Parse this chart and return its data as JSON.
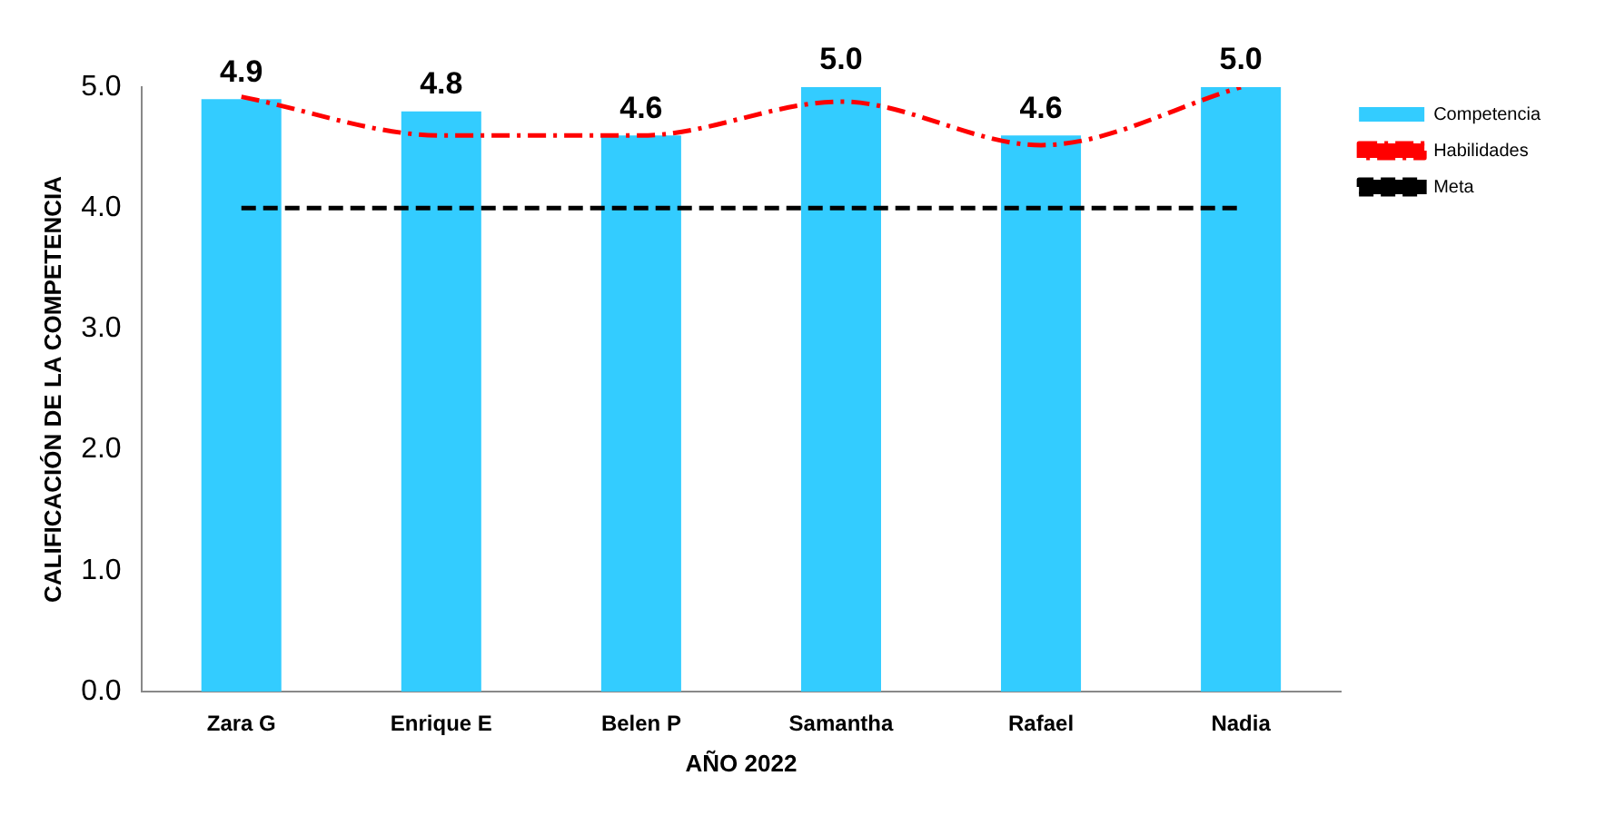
{
  "chart_data": {
    "type": "bar",
    "xlabel": "AÑO 2022",
    "ylabel": "CALIFICACIÓN DE LA COMPETENCIA",
    "categories": [
      "Zara G",
      "Enrique E",
      "Belen P",
      "Samantha",
      "Rafael",
      "Nadia"
    ],
    "series": [
      {
        "name": "Competencia",
        "color": "#33ccff",
        "values": [
          4.9,
          4.8,
          4.6,
          5.0,
          4.6,
          5.0
        ],
        "value_labels": [
          "4.9",
          "4.8",
          "4.6",
          "5.0",
          "4.6",
          "5.0"
        ]
      },
      {
        "name": "Habilidades",
        "type": "line",
        "color": "#ff0000",
        "line_style": "dashed",
        "values": [
          4.92,
          4.6,
          4.6,
          4.88,
          4.52,
          5.0
        ]
      },
      {
        "name": "Meta",
        "type": "line",
        "color": "#000000",
        "line_style": "dashed",
        "values": [
          4.0,
          4.0,
          4.0,
          4.0,
          4.0,
          4.0
        ]
      }
    ],
    "ylim": [
      0,
      5
    ],
    "yticks": [
      {
        "value": 0,
        "label": "0.0"
      },
      {
        "value": 1,
        "label": "1.0"
      },
      {
        "value": 2,
        "label": "2.0"
      },
      {
        "value": 3,
        "label": "3.0"
      },
      {
        "value": 4,
        "label": "4.0"
      },
      {
        "value": 5,
        "label": "5.0"
      }
    ],
    "grid": false,
    "legend": "top right",
    "marker": "none"
  }
}
